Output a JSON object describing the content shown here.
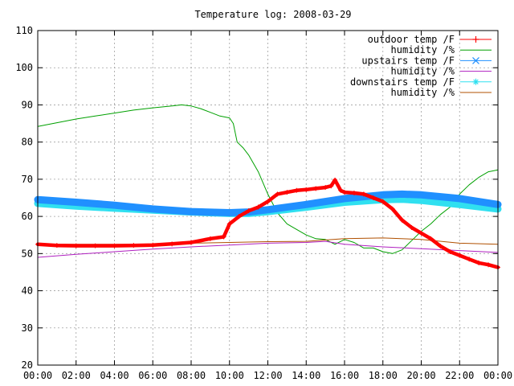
{
  "chart_data": {
    "type": "line",
    "title": "Temperature log: 2008-03-29",
    "xlabel": "",
    "ylabel": "",
    "x_ticks": [
      "00:00",
      "02:00",
      "04:00",
      "06:00",
      "08:00",
      "10:00",
      "12:00",
      "14:00",
      "16:00",
      "18:00",
      "20:00",
      "22:00",
      "00:00"
    ],
    "xlim_hours": [
      0,
      24
    ],
    "ylim": [
      20,
      110
    ],
    "y_ticks": [
      20,
      30,
      40,
      50,
      60,
      70,
      80,
      90,
      100,
      110
    ],
    "grid": true,
    "legend_position": "top-right",
    "series": [
      {
        "name": "outdoor temp /F",
        "color": "#ff0000",
        "marker": "plus",
        "points": [
          [
            0,
            52.5
          ],
          [
            1,
            52.2
          ],
          [
            2,
            52.1
          ],
          [
            3,
            52.1
          ],
          [
            4,
            52.1
          ],
          [
            5,
            52.2
          ],
          [
            6,
            52.3
          ],
          [
            7,
            52.6
          ],
          [
            8,
            53.0
          ],
          [
            9,
            54.0
          ],
          [
            9.7,
            54.5
          ],
          [
            10.0,
            58.0
          ],
          [
            10.5,
            60.0
          ],
          [
            11,
            61.5
          ],
          [
            11.5,
            62.5
          ],
          [
            12,
            64.0
          ],
          [
            12.5,
            66.0
          ],
          [
            13,
            66.5
          ],
          [
            13.5,
            67.0
          ],
          [
            14,
            67.2
          ],
          [
            14.5,
            67.5
          ],
          [
            15,
            67.8
          ],
          [
            15.3,
            68.2
          ],
          [
            15.5,
            69.8
          ],
          [
            15.8,
            67.0
          ],
          [
            16,
            66.5
          ],
          [
            16.5,
            66.3
          ],
          [
            17,
            66.0
          ],
          [
            17.5,
            65.0
          ],
          [
            18,
            64.0
          ],
          [
            18.5,
            62.0
          ],
          [
            19,
            59.0
          ],
          [
            19.5,
            57.0
          ],
          [
            20,
            55.5
          ],
          [
            20.5,
            54.0
          ],
          [
            21,
            52.0
          ],
          [
            21.5,
            50.5
          ],
          [
            22,
            49.5
          ],
          [
            22.5,
            48.5
          ],
          [
            23,
            47.5
          ],
          [
            23.5,
            47.0
          ],
          [
            24,
            46.3
          ]
        ]
      },
      {
        "name": "humidity /%",
        "color": "#00a000",
        "marker": "none",
        "points": [
          [
            0,
            84.2
          ],
          [
            1,
            85.2
          ],
          [
            2,
            86.2
          ],
          [
            3,
            87.0
          ],
          [
            4,
            87.8
          ],
          [
            5,
            88.6
          ],
          [
            6,
            89.2
          ],
          [
            7,
            89.7
          ],
          [
            7.5,
            90.0
          ],
          [
            8,
            89.7
          ],
          [
            8.5,
            89.0
          ],
          [
            9,
            88.0
          ],
          [
            9.5,
            87.0
          ],
          [
            10,
            86.5
          ],
          [
            10.2,
            85.0
          ],
          [
            10.4,
            80.0
          ],
          [
            10.7,
            78.5
          ],
          [
            11,
            76.5
          ],
          [
            11.5,
            72.0
          ],
          [
            12,
            66.0
          ],
          [
            12.5,
            61.0
          ],
          [
            13,
            58.0
          ],
          [
            13.5,
            56.5
          ],
          [
            14,
            55.0
          ],
          [
            14.5,
            54.0
          ],
          [
            15,
            53.8
          ],
          [
            15.5,
            52.5
          ],
          [
            16,
            53.8
          ],
          [
            16.5,
            53.0
          ],
          [
            17,
            51.5
          ],
          [
            17.5,
            51.5
          ],
          [
            18,
            50.5
          ],
          [
            18.5,
            50.0
          ],
          [
            19,
            51.0
          ],
          [
            19.5,
            53.5
          ],
          [
            20,
            56.0
          ],
          [
            20.5,
            58.0
          ],
          [
            21,
            60.5
          ],
          [
            21.5,
            62.5
          ],
          [
            22,
            66.0
          ],
          [
            22.5,
            68.5
          ],
          [
            23,
            70.5
          ],
          [
            23.5,
            72.0
          ],
          [
            24,
            72.5
          ]
        ]
      },
      {
        "name": "upstairs temp /F",
        "color": "#2090ff",
        "marker": "cross",
        "points": [
          [
            0,
            64.5
          ],
          [
            2,
            63.8
          ],
          [
            4,
            63.0
          ],
          [
            6,
            62.0
          ],
          [
            8,
            61.3
          ],
          [
            10,
            61.0
          ],
          [
            11,
            61.2
          ],
          [
            12,
            61.8
          ],
          [
            14,
            63.2
          ],
          [
            16,
            64.8
          ],
          [
            18,
            65.8
          ],
          [
            19,
            66.0
          ],
          [
            20,
            65.8
          ],
          [
            22,
            64.8
          ],
          [
            24,
            63.2
          ]
        ]
      },
      {
        "name": "humidity /%",
        "color": "#b020c0",
        "marker": "none",
        "points": [
          [
            0,
            49.0
          ],
          [
            2,
            49.8
          ],
          [
            4,
            50.5
          ],
          [
            6,
            51.2
          ],
          [
            8,
            51.8
          ],
          [
            10,
            52.3
          ],
          [
            12,
            52.8
          ],
          [
            14,
            53.0
          ],
          [
            15,
            53.3
          ],
          [
            16,
            52.5
          ],
          [
            18,
            51.8
          ],
          [
            20,
            51.3
          ],
          [
            22,
            50.8
          ],
          [
            24,
            50.3
          ]
        ]
      },
      {
        "name": "downstairs temp /F",
        "color": "#30e0f0",
        "marker": "star",
        "points": [
          [
            0,
            63.5
          ],
          [
            2,
            62.8
          ],
          [
            4,
            62.2
          ],
          [
            6,
            61.7
          ],
          [
            8,
            61.2
          ],
          [
            10,
            60.8
          ],
          [
            11,
            60.8
          ],
          [
            12,
            61.3
          ],
          [
            14,
            62.5
          ],
          [
            16,
            63.8
          ],
          [
            18,
            64.5
          ],
          [
            19,
            64.6
          ],
          [
            20,
            64.3
          ],
          [
            22,
            63.2
          ],
          [
            24,
            62.0
          ]
        ]
      },
      {
        "name": "humidity /%",
        "color": "#b05000",
        "marker": "none",
        "points": [
          [
            0,
            52.5
          ],
          [
            2,
            52.5
          ],
          [
            4,
            52.5
          ],
          [
            6,
            52.5
          ],
          [
            8,
            52.8
          ],
          [
            10,
            53.0
          ],
          [
            12,
            53.2
          ],
          [
            14,
            53.3
          ],
          [
            16,
            54.0
          ],
          [
            18,
            54.2
          ],
          [
            20,
            53.8
          ],
          [
            22,
            52.8
          ],
          [
            24,
            52.5
          ]
        ]
      }
    ]
  }
}
